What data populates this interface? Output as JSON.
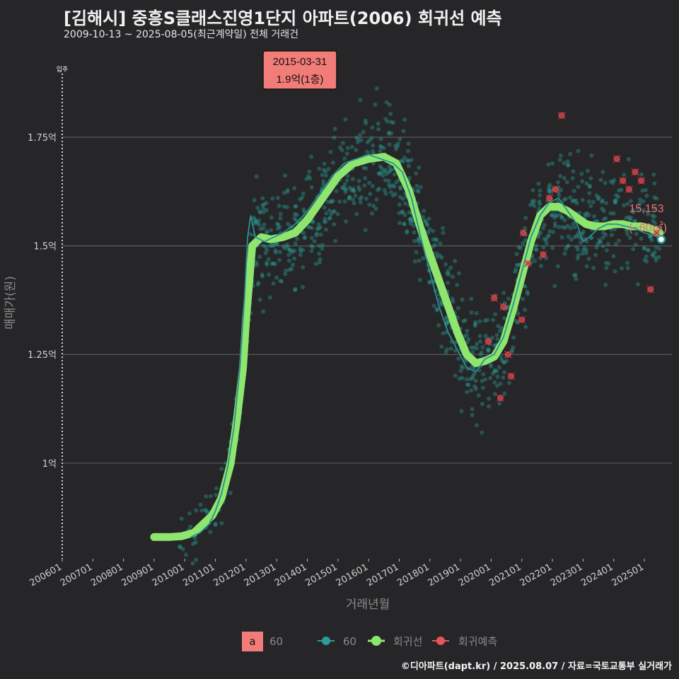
{
  "header": {
    "title": "[김해시] 중흥S클래스진영1단지 아파트(2006) 회귀선 예측",
    "subtitle": "2009-10-13 ~ 2025-08-05(최근계약일) 전체 거래건"
  },
  "footer": {
    "credit": "©디아파트(dapt.kr) / 2025.08.07 / 자료=국토교통부 실거래가"
  },
  "colors": {
    "bg": "#262628",
    "grid": "#5a5a5a",
    "teal": "#2a9d96",
    "green": "#8ee66e",
    "red": "#e8555a",
    "annot_bg": "#f27c78"
  },
  "chart_data": {
    "type": "scatter",
    "title": "[김해시] 중흥S클래스진영1단지 아파트(2006) 회귀선 예측",
    "xlabel": "거래년월",
    "ylabel": "매매가(원)",
    "x_ticks": [
      "200601",
      "200701",
      "200801",
      "200901",
      "201001",
      "201101",
      "201201",
      "201301",
      "201401",
      "201501",
      "201601",
      "201701",
      "201801",
      "201901",
      "202001",
      "202101",
      "202201",
      "202301",
      "202401",
      "202501"
    ],
    "x_range": [
      2006.0,
      2025.9
    ],
    "ylim": [
      0.78,
      1.96
    ],
    "y_ticks": [
      {
        "value": 1.0,
        "label": "1억"
      },
      {
        "value": 1.25,
        "label": "1.25억"
      },
      {
        "value": 1.5,
        "label": "1.5억"
      },
      {
        "value": 1.75,
        "label": "1.75억"
      }
    ],
    "move_in": {
      "x": 2006.0,
      "label": "입주"
    },
    "annotation": {
      "x": 2015.25,
      "date": "2015-03-31",
      "text": "1.9억(1층)"
    },
    "last_label": {
      "x": 2025.55,
      "y": 1.515,
      "value": "15,153",
      "area": "(~60㎡)"
    },
    "regression": {
      "name": "회귀선",
      "x": [
        2009.0,
        2009.5,
        2009.9,
        2010.3,
        2010.6,
        2010.9,
        2011.2,
        2011.5,
        2011.7,
        2011.9,
        2012.0,
        2012.2,
        2012.5,
        2012.8,
        2013.2,
        2013.6,
        2014.0,
        2014.5,
        2015.0,
        2015.5,
        2016.0,
        2016.5,
        2016.9,
        2017.3,
        2017.7,
        2018.1,
        2018.5,
        2018.9,
        2019.2,
        2019.5,
        2019.8,
        2020.1,
        2020.4,
        2020.7,
        2021.0,
        2021.3,
        2021.6,
        2021.9,
        2022.2,
        2022.5,
        2022.8,
        2023.1,
        2023.4,
        2023.7,
        2024.0,
        2024.3,
        2024.6,
        2024.9,
        2025.2,
        2025.5
      ],
      "y": [
        0.83,
        0.83,
        0.832,
        0.84,
        0.86,
        0.88,
        0.92,
        1.0,
        1.1,
        1.22,
        1.33,
        1.5,
        1.52,
        1.515,
        1.52,
        1.53,
        1.56,
        1.61,
        1.66,
        1.69,
        1.7,
        1.705,
        1.69,
        1.63,
        1.54,
        1.46,
        1.38,
        1.3,
        1.25,
        1.23,
        1.235,
        1.245,
        1.28,
        1.35,
        1.43,
        1.51,
        1.57,
        1.59,
        1.59,
        1.58,
        1.565,
        1.55,
        1.545,
        1.545,
        1.55,
        1.55,
        1.545,
        1.545,
        1.54,
        1.53
      ]
    },
    "series_60": {
      "name": "60",
      "x": [
        2010.2,
        2010.5,
        2010.8,
        2011.0,
        2011.2,
        2011.4,
        2011.6,
        2011.8,
        2011.95,
        2012.05,
        2012.15,
        2012.3,
        2012.6,
        2012.9,
        2013.2,
        2013.6,
        2014.0,
        2014.4,
        2014.8,
        2015.2,
        2015.6,
        2016.0,
        2016.4,
        2016.8,
        2017.1,
        2017.4,
        2017.7,
        2018.0,
        2018.3,
        2018.6,
        2018.9,
        2019.2,
        2019.5,
        2019.8,
        2020.1,
        2020.4,
        2020.7,
        2021.0,
        2021.3,
        2021.6,
        2021.9,
        2022.2,
        2022.5,
        2022.8,
        2023.0,
        2023.2,
        2023.5,
        2023.8,
        2024.1,
        2024.4,
        2024.7,
        2025.0,
        2025.3,
        2025.55
      ],
      "y": [
        0.83,
        0.84,
        0.86,
        0.89,
        0.93,
        0.99,
        1.08,
        1.22,
        1.38,
        1.52,
        1.57,
        1.52,
        1.51,
        1.52,
        1.53,
        1.55,
        1.58,
        1.62,
        1.66,
        1.69,
        1.7,
        1.71,
        1.7,
        1.69,
        1.67,
        1.61,
        1.52,
        1.44,
        1.36,
        1.3,
        1.26,
        1.22,
        1.21,
        1.24,
        1.25,
        1.29,
        1.36,
        1.44,
        1.52,
        1.57,
        1.6,
        1.61,
        1.58,
        1.55,
        1.51,
        1.52,
        1.54,
        1.55,
        1.55,
        1.545,
        1.54,
        1.53,
        1.525,
        1.515
      ]
    },
    "predict_points": {
      "name": "회귀예측",
      "x": [
        2019.9,
        2020.1,
        2020.3,
        2020.4,
        2020.55,
        2020.65,
        2021.0,
        2021.05,
        2021.2,
        2021.7,
        2021.9,
        2022.1,
        2022.3,
        2024.1,
        2024.3,
        2024.5,
        2024.7,
        2024.9,
        2025.2,
        2025.4
      ],
      "y": [
        1.28,
        1.38,
        1.15,
        1.36,
        1.25,
        1.2,
        1.33,
        1.53,
        1.46,
        1.48,
        1.61,
        1.63,
        1.8,
        1.7,
        1.65,
        1.63,
        1.67,
        1.65,
        1.4,
        1.53
      ]
    },
    "legend": {
      "size_key": "a",
      "size_label": "60",
      "items": [
        "60",
        "회귀선",
        "회귀예측"
      ]
    }
  }
}
